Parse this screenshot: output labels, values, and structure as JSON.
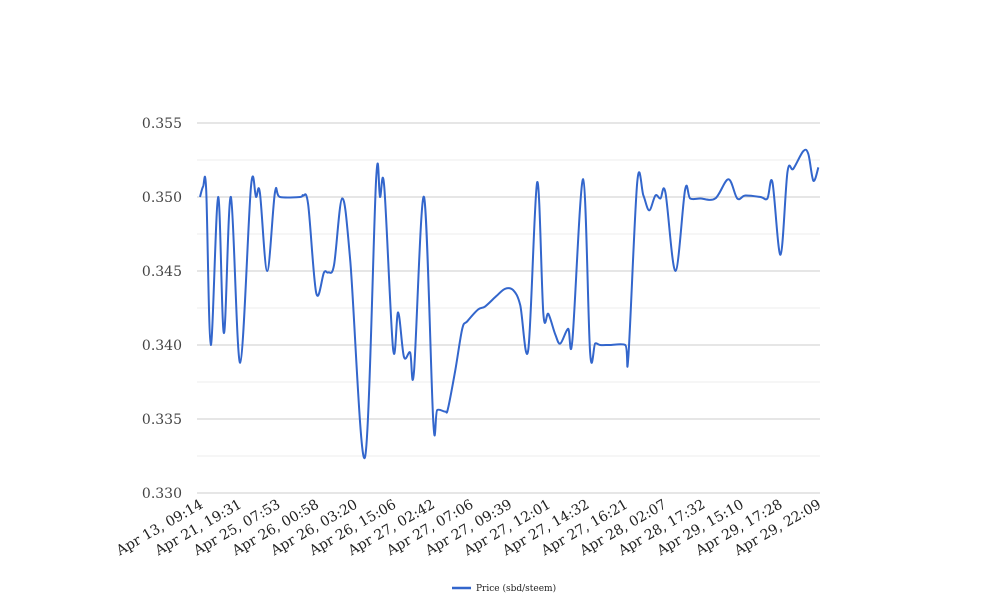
{
  "chart_data": {
    "type": "line",
    "title": "",
    "xlabel": "",
    "ylabel": "",
    "ylim": [
      0.33,
      0.355
    ],
    "yticks": [
      "0.330",
      "0.335",
      "0.340",
      "0.345",
      "0.350",
      "0.355"
    ],
    "ytick_values": [
      0.33,
      0.335,
      0.34,
      0.345,
      0.35,
      0.355
    ],
    "grid": true,
    "legend_position": "bottom",
    "x_tick_labels": [
      "Apr 13, 09:14",
      "Apr 21, 19:31",
      "Apr 25, 07:53",
      "Apr 26, 00:58",
      "Apr 26, 03:20",
      "Apr 26, 15:06",
      "Apr 27, 02:42",
      "Apr 27, 07:06",
      "Apr 27, 09:39",
      "Apr 27, 12:01",
      "Apr 27, 14:32",
      "Apr 27, 16:21",
      "Apr 28, 02:07",
      "Apr 28, 17:32",
      "Apr 29, 15:10",
      "Apr 29, 17:28",
      "Apr 29, 22:09"
    ],
    "x_range": [
      0,
      160
    ],
    "series": [
      {
        "name": "Price (sbd/steem)",
        "color": "#3366cc",
        "points": [
          [
            0,
            0.35
          ],
          [
            0.8,
            0.3507
          ],
          [
            1.6,
            0.3505
          ],
          [
            2.8,
            0.34
          ],
          [
            4.7,
            0.35
          ],
          [
            6.2,
            0.3408
          ],
          [
            8.0,
            0.35
          ],
          [
            10.4,
            0.3388
          ],
          [
            13.2,
            0.3507
          ],
          [
            14.5,
            0.35
          ],
          [
            15.5,
            0.3503
          ],
          [
            17.4,
            0.345
          ],
          [
            19.4,
            0.3503
          ],
          [
            20.7,
            0.35
          ],
          [
            25.9,
            0.35
          ],
          [
            26.7,
            0.3501
          ],
          [
            28.0,
            0.3495
          ],
          [
            30.1,
            0.3435
          ],
          [
            32.1,
            0.3449
          ],
          [
            33.2,
            0.3449
          ],
          [
            34.7,
            0.3454
          ],
          [
            36.8,
            0.3499
          ],
          [
            38.9,
            0.3457
          ],
          [
            42.7,
            0.3324
          ],
          [
            45.6,
            0.3512
          ],
          [
            46.6,
            0.35
          ],
          [
            47.7,
            0.3507
          ],
          [
            50.0,
            0.3397
          ],
          [
            51.3,
            0.3422
          ],
          [
            52.8,
            0.3392
          ],
          [
            54.4,
            0.3395
          ],
          [
            55.4,
            0.3382
          ],
          [
            58.0,
            0.35
          ],
          [
            60.4,
            0.3348
          ],
          [
            61.4,
            0.3356
          ],
          [
            63.5,
            0.3355
          ],
          [
            64.2,
            0.3357
          ],
          [
            66.1,
            0.3383
          ],
          [
            67.9,
            0.3411
          ],
          [
            69.2,
            0.3416
          ],
          [
            72.0,
            0.3424
          ],
          [
            73.8,
            0.3426
          ],
          [
            76.7,
            0.3433
          ],
          [
            79.0,
            0.3438
          ],
          [
            81.1,
            0.3437
          ],
          [
            82.9,
            0.3427
          ],
          [
            85.0,
            0.3397
          ],
          [
            87.3,
            0.351
          ],
          [
            88.9,
            0.3421
          ],
          [
            90.2,
            0.3421
          ],
          [
            92.0,
            0.3407
          ],
          [
            93.3,
            0.3401
          ],
          [
            95.3,
            0.3411
          ],
          [
            96.4,
            0.3403
          ],
          [
            99.2,
            0.3512
          ],
          [
            101.0,
            0.3395
          ],
          [
            102.3,
            0.3401
          ],
          [
            103.6,
            0.34
          ],
          [
            106.2,
            0.34
          ],
          [
            110.1,
            0.34
          ],
          [
            110.9,
            0.3392
          ],
          [
            113.2,
            0.351
          ],
          [
            114.8,
            0.3501
          ],
          [
            116.3,
            0.3491
          ],
          [
            117.9,
            0.3501
          ],
          [
            119.2,
            0.3499
          ],
          [
            120.5,
            0.3503
          ],
          [
            123.1,
            0.345
          ],
          [
            125.6,
            0.3505
          ],
          [
            126.9,
            0.3499
          ],
          [
            129.5,
            0.3499
          ],
          [
            133.4,
            0.3499
          ],
          [
            136.8,
            0.3512
          ],
          [
            139.1,
            0.3499
          ],
          [
            141.2,
            0.3501
          ],
          [
            145.1,
            0.35
          ],
          [
            146.9,
            0.3499
          ],
          [
            148.2,
            0.351
          ],
          [
            150.3,
            0.3461
          ],
          [
            152.1,
            0.3517
          ],
          [
            153.6,
            0.3519
          ],
          [
            156.2,
            0.3531
          ],
          [
            157.5,
            0.3529
          ],
          [
            158.8,
            0.3511
          ],
          [
            160.1,
            0.352
          ]
        ]
      }
    ]
  }
}
